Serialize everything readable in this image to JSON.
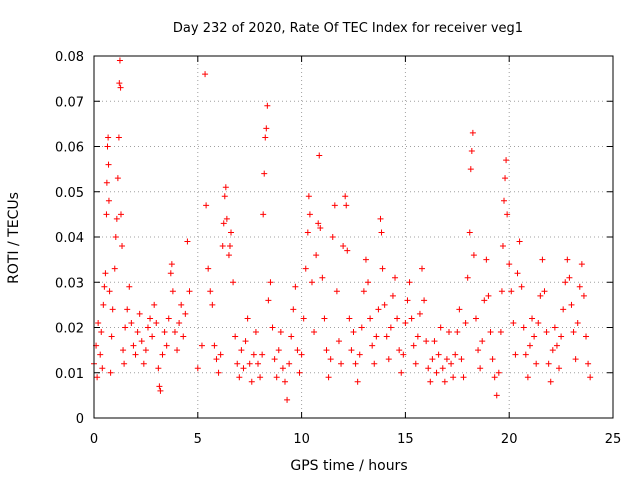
{
  "chart_data": {
    "type": "scatter",
    "title": "Day 232 of 2020, Rate Of TEC Index for receiver veg1",
    "xlabel": "GPS time / hours",
    "ylabel": "ROTI / TECUs",
    "xlim": [
      0,
      25
    ],
    "ylim": [
      0,
      0.08
    ],
    "xticks": [
      0,
      5,
      10,
      15,
      20,
      25
    ],
    "yticks": [
      0,
      0.01,
      0.02,
      0.03,
      0.04,
      0.05,
      0.06,
      0.07,
      0.08
    ],
    "xtick_labels": [
      "0",
      "5",
      "10",
      "15",
      "20",
      "25"
    ],
    "ytick_labels": [
      "0",
      "0.01",
      "0.02",
      "0.03",
      "0.04",
      "0.05",
      "0.06",
      "0.07",
      "0.08"
    ],
    "grid": true,
    "marker": "+",
    "color": "#ff0000",
    "series": [
      {
        "name": "veg1",
        "points": [
          [
            0.0,
            0.012
          ],
          [
            0.1,
            0.016
          ],
          [
            0.15,
            0.009
          ],
          [
            0.2,
            0.021
          ],
          [
            0.3,
            0.014
          ],
          [
            0.35,
            0.019
          ],
          [
            0.4,
            0.011
          ],
          [
            0.45,
            0.025
          ],
          [
            0.5,
            0.029
          ],
          [
            0.55,
            0.032
          ],
          [
            0.6,
            0.045
          ],
          [
            0.62,
            0.052
          ],
          [
            0.65,
            0.06
          ],
          [
            0.68,
            0.062
          ],
          [
            0.7,
            0.056
          ],
          [
            0.72,
            0.048
          ],
          [
            0.75,
            0.028
          ],
          [
            0.8,
            0.01
          ],
          [
            0.85,
            0.018
          ],
          [
            0.9,
            0.024
          ],
          [
            1.0,
            0.033
          ],
          [
            1.05,
            0.04
          ],
          [
            1.1,
            0.044
          ],
          [
            1.15,
            0.053
          ],
          [
            1.2,
            0.062
          ],
          [
            1.22,
            0.074
          ],
          [
            1.25,
            0.079
          ],
          [
            1.28,
            0.073
          ],
          [
            1.3,
            0.045
          ],
          [
            1.35,
            0.038
          ],
          [
            1.4,
            0.015
          ],
          [
            1.45,
            0.012
          ],
          [
            1.5,
            0.02
          ],
          [
            1.6,
            0.024
          ],
          [
            1.7,
            0.029
          ],
          [
            1.8,
            0.021
          ],
          [
            1.9,
            0.016
          ],
          [
            2.0,
            0.014
          ],
          [
            2.1,
            0.019
          ],
          [
            2.2,
            0.023
          ],
          [
            2.3,
            0.017
          ],
          [
            2.4,
            0.012
          ],
          [
            2.5,
            0.015
          ],
          [
            2.6,
            0.02
          ],
          [
            2.7,
            0.022
          ],
          [
            2.8,
            0.018
          ],
          [
            2.9,
            0.025
          ],
          [
            3.0,
            0.021
          ],
          [
            3.1,
            0.011
          ],
          [
            3.15,
            0.007
          ],
          [
            3.2,
            0.006
          ],
          [
            3.3,
            0.014
          ],
          [
            3.4,
            0.019
          ],
          [
            3.5,
            0.016
          ],
          [
            3.6,
            0.022
          ],
          [
            3.7,
            0.032
          ],
          [
            3.75,
            0.034
          ],
          [
            3.8,
            0.028
          ],
          [
            3.9,
            0.019
          ],
          [
            4.0,
            0.015
          ],
          [
            4.1,
            0.021
          ],
          [
            4.2,
            0.025
          ],
          [
            4.3,
            0.018
          ],
          [
            4.4,
            0.023
          ],
          [
            4.5,
            0.039
          ],
          [
            4.6,
            0.028
          ],
          [
            5.0,
            0.011
          ],
          [
            5.2,
            0.016
          ],
          [
            5.35,
            0.076
          ],
          [
            5.4,
            0.047
          ],
          [
            5.5,
            0.033
          ],
          [
            5.6,
            0.028
          ],
          [
            5.7,
            0.025
          ],
          [
            5.8,
            0.016
          ],
          [
            5.9,
            0.013
          ],
          [
            6.0,
            0.01
          ],
          [
            6.1,
            0.014
          ],
          [
            6.2,
            0.038
          ],
          [
            6.25,
            0.043
          ],
          [
            6.3,
            0.049
          ],
          [
            6.35,
            0.051
          ],
          [
            6.4,
            0.044
          ],
          [
            6.5,
            0.036
          ],
          [
            6.55,
            0.038
          ],
          [
            6.6,
            0.041
          ],
          [
            6.7,
            0.03
          ],
          [
            6.8,
            0.018
          ],
          [
            6.9,
            0.012
          ],
          [
            7.0,
            0.009
          ],
          [
            7.1,
            0.015
          ],
          [
            7.2,
            0.011
          ],
          [
            7.3,
            0.017
          ],
          [
            7.4,
            0.022
          ],
          [
            7.5,
            0.012
          ],
          [
            7.6,
            0.008
          ],
          [
            7.7,
            0.014
          ],
          [
            7.8,
            0.019
          ],
          [
            7.9,
            0.012
          ],
          [
            8.0,
            0.009
          ],
          [
            8.1,
            0.014
          ],
          [
            8.15,
            0.045
          ],
          [
            8.2,
            0.054
          ],
          [
            8.25,
            0.062
          ],
          [
            8.3,
            0.064
          ],
          [
            8.35,
            0.069
          ],
          [
            8.4,
            0.026
          ],
          [
            8.5,
            0.03
          ],
          [
            8.6,
            0.02
          ],
          [
            8.7,
            0.013
          ],
          [
            8.8,
            0.009
          ],
          [
            8.9,
            0.015
          ],
          [
            9.0,
            0.019
          ],
          [
            9.1,
            0.011
          ],
          [
            9.2,
            0.008
          ],
          [
            9.3,
            0.004
          ],
          [
            9.4,
            0.012
          ],
          [
            9.5,
            0.018
          ],
          [
            9.6,
            0.024
          ],
          [
            9.7,
            0.029
          ],
          [
            9.8,
            0.015
          ],
          [
            9.9,
            0.01
          ],
          [
            10.0,
            0.014
          ],
          [
            10.1,
            0.022
          ],
          [
            10.2,
            0.033
          ],
          [
            10.3,
            0.041
          ],
          [
            10.35,
            0.049
          ],
          [
            10.4,
            0.045
          ],
          [
            10.5,
            0.03
          ],
          [
            10.6,
            0.019
          ],
          [
            10.7,
            0.036
          ],
          [
            10.8,
            0.043
          ],
          [
            10.85,
            0.058
          ],
          [
            10.9,
            0.042
          ],
          [
            11.0,
            0.031
          ],
          [
            11.1,
            0.022
          ],
          [
            11.2,
            0.015
          ],
          [
            11.3,
            0.009
          ],
          [
            11.4,
            0.013
          ],
          [
            11.5,
            0.04
          ],
          [
            11.6,
            0.047
          ],
          [
            11.7,
            0.028
          ],
          [
            11.8,
            0.017
          ],
          [
            11.9,
            0.012
          ],
          [
            12.0,
            0.038
          ],
          [
            12.1,
            0.049
          ],
          [
            12.15,
            0.047
          ],
          [
            12.2,
            0.037
          ],
          [
            12.3,
            0.022
          ],
          [
            12.4,
            0.015
          ],
          [
            12.5,
            0.019
          ],
          [
            12.6,
            0.012
          ],
          [
            12.7,
            0.008
          ],
          [
            12.8,
            0.014
          ],
          [
            12.9,
            0.02
          ],
          [
            13.0,
            0.028
          ],
          [
            13.1,
            0.035
          ],
          [
            13.2,
            0.03
          ],
          [
            13.3,
            0.022
          ],
          [
            13.4,
            0.016
          ],
          [
            13.5,
            0.012
          ],
          [
            13.6,
            0.018
          ],
          [
            13.7,
            0.024
          ],
          [
            13.8,
            0.044
          ],
          [
            13.85,
            0.041
          ],
          [
            13.9,
            0.033
          ],
          [
            14.0,
            0.025
          ],
          [
            14.1,
            0.018
          ],
          [
            14.2,
            0.013
          ],
          [
            14.3,
            0.02
          ],
          [
            14.4,
            0.027
          ],
          [
            14.5,
            0.031
          ],
          [
            14.6,
            0.022
          ],
          [
            14.7,
            0.015
          ],
          [
            14.8,
            0.01
          ],
          [
            14.9,
            0.014
          ],
          [
            15.0,
            0.021
          ],
          [
            15.1,
            0.026
          ],
          [
            15.2,
            0.03
          ],
          [
            15.3,
            0.022
          ],
          [
            15.4,
            0.016
          ],
          [
            15.5,
            0.012
          ],
          [
            15.6,
            0.018
          ],
          [
            15.7,
            0.023
          ],
          [
            15.8,
            0.033
          ],
          [
            15.9,
            0.026
          ],
          [
            16.0,
            0.017
          ],
          [
            16.1,
            0.011
          ],
          [
            16.2,
            0.008
          ],
          [
            16.3,
            0.013
          ],
          [
            16.4,
            0.017
          ],
          [
            16.5,
            0.01
          ],
          [
            16.6,
            0.014
          ],
          [
            16.7,
            0.02
          ],
          [
            16.8,
            0.011
          ],
          [
            16.9,
            0.008
          ],
          [
            17.0,
            0.013
          ],
          [
            17.1,
            0.019
          ],
          [
            17.2,
            0.012
          ],
          [
            17.3,
            0.009
          ],
          [
            17.4,
            0.014
          ],
          [
            17.5,
            0.019
          ],
          [
            17.6,
            0.024
          ],
          [
            17.7,
            0.013
          ],
          [
            17.8,
            0.009
          ],
          [
            17.9,
            0.021
          ],
          [
            18.0,
            0.031
          ],
          [
            18.1,
            0.041
          ],
          [
            18.15,
            0.055
          ],
          [
            18.2,
            0.059
          ],
          [
            18.25,
            0.063
          ],
          [
            18.3,
            0.036
          ],
          [
            18.4,
            0.022
          ],
          [
            18.5,
            0.015
          ],
          [
            18.6,
            0.011
          ],
          [
            18.7,
            0.017
          ],
          [
            18.8,
            0.026
          ],
          [
            18.9,
            0.035
          ],
          [
            19.0,
            0.027
          ],
          [
            19.1,
            0.019
          ],
          [
            19.2,
            0.013
          ],
          [
            19.3,
            0.009
          ],
          [
            19.4,
            0.005
          ],
          [
            19.5,
            0.01
          ],
          [
            19.6,
            0.019
          ],
          [
            19.65,
            0.028
          ],
          [
            19.7,
            0.038
          ],
          [
            19.75,
            0.048
          ],
          [
            19.8,
            0.053
          ],
          [
            19.85,
            0.057
          ],
          [
            19.9,
            0.045
          ],
          [
            20.0,
            0.034
          ],
          [
            20.1,
            0.028
          ],
          [
            20.2,
            0.021
          ],
          [
            20.3,
            0.014
          ],
          [
            20.4,
            0.032
          ],
          [
            20.5,
            0.039
          ],
          [
            20.6,
            0.029
          ],
          [
            20.7,
            0.02
          ],
          [
            20.8,
            0.014
          ],
          [
            20.9,
            0.009
          ],
          [
            21.0,
            0.016
          ],
          [
            21.1,
            0.022
          ],
          [
            21.2,
            0.018
          ],
          [
            21.3,
            0.012
          ],
          [
            21.4,
            0.021
          ],
          [
            21.5,
            0.027
          ],
          [
            21.6,
            0.035
          ],
          [
            21.7,
            0.028
          ],
          [
            21.8,
            0.019
          ],
          [
            21.9,
            0.012
          ],
          [
            22.0,
            0.008
          ],
          [
            22.1,
            0.015
          ],
          [
            22.2,
            0.02
          ],
          [
            22.3,
            0.016
          ],
          [
            22.4,
            0.011
          ],
          [
            22.5,
            0.018
          ],
          [
            22.6,
            0.024
          ],
          [
            22.7,
            0.03
          ],
          [
            22.8,
            0.035
          ],
          [
            22.9,
            0.031
          ],
          [
            23.0,
            0.025
          ],
          [
            23.1,
            0.019
          ],
          [
            23.2,
            0.013
          ],
          [
            23.3,
            0.021
          ],
          [
            23.4,
            0.029
          ],
          [
            23.5,
            0.034
          ],
          [
            23.6,
            0.027
          ],
          [
            23.7,
            0.018
          ],
          [
            23.8,
            0.012
          ],
          [
            23.9,
            0.009
          ]
        ]
      }
    ]
  }
}
